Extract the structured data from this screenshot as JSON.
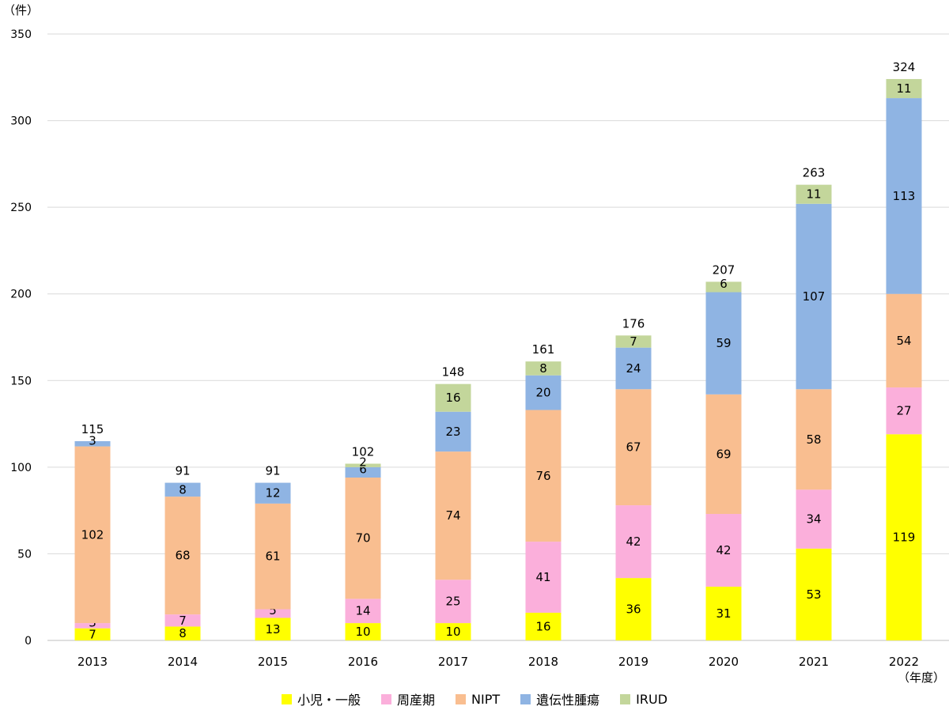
{
  "chart_data": {
    "type": "bar",
    "stacked": true,
    "y_unit_label": "（件）",
    "x_unit_label": "（年度）",
    "categories": [
      "2013",
      "2014",
      "2015",
      "2016",
      "2017",
      "2018",
      "2019",
      "2020",
      "2021",
      "2022"
    ],
    "ylim": [
      0,
      350
    ],
    "yticks": [
      0,
      50,
      100,
      150,
      200,
      250,
      300,
      350
    ],
    "grid": true,
    "legend_position": "bottom",
    "series": [
      {
        "name": "小児・一般",
        "color": "#FFFF00",
        "values": [
          7,
          8,
          13,
          10,
          10,
          16,
          36,
          31,
          53,
          119
        ]
      },
      {
        "name": "周産期",
        "color": "#FBAFDB",
        "values": [
          3,
          7,
          5,
          14,
          25,
          41,
          42,
          42,
          34,
          27
        ]
      },
      {
        "name": "NIPT",
        "color": "#F9BE90",
        "values": [
          102,
          68,
          61,
          70,
          74,
          76,
          67,
          69,
          58,
          54
        ]
      },
      {
        "name": "遺伝性腫瘍",
        "color": "#8FB4E3",
        "values": [
          3,
          8,
          12,
          6,
          23,
          20,
          24,
          59,
          107,
          113
        ]
      },
      {
        "name": "IRUD",
        "color": "#C3D69B",
        "values": [
          0,
          0,
          0,
          2,
          16,
          8,
          7,
          6,
          11,
          11
        ]
      }
    ],
    "totals": [
      115,
      91,
      91,
      102,
      148,
      161,
      176,
      207,
      263,
      324
    ]
  }
}
